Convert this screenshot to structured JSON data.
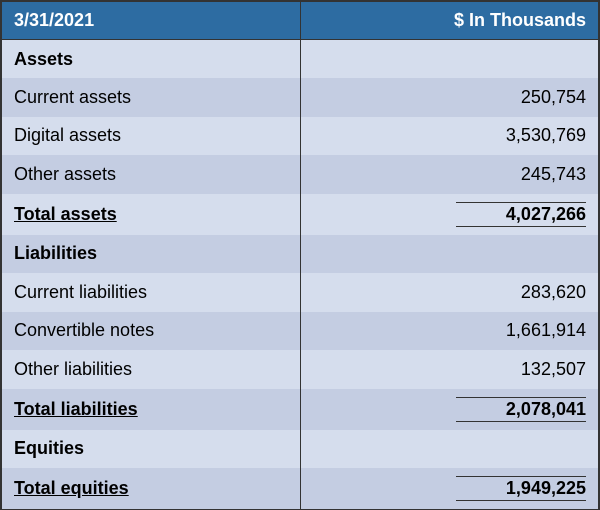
{
  "header": {
    "date": "3/31/2021",
    "unit": "$ In Thousands"
  },
  "colors": {
    "header_bg": "#2d6ca2",
    "header_text": "#ffffff",
    "row_light": "#d5dded",
    "row_dark": "#c4cde2",
    "border": "#333333"
  },
  "sections": [
    {
      "title": "Assets",
      "items": [
        {
          "label": "Current assets",
          "value": "250,754"
        },
        {
          "label": "Digital assets",
          "value": "3,530,769"
        },
        {
          "label": "Other assets",
          "value": "245,743"
        }
      ],
      "total": {
        "label": "Total assets",
        "value": "4,027,266"
      }
    },
    {
      "title": "Liabilities",
      "items": [
        {
          "label": "Current liabilities",
          "value": "283,620"
        },
        {
          "label": "Convertible notes",
          "value": "1,661,914"
        },
        {
          "label": "Other liabilities",
          "value": "132,507"
        }
      ],
      "total": {
        "label": "Total liabilities",
        "value": "2,078,041"
      }
    },
    {
      "title": "Equities",
      "items": [],
      "total": {
        "label": "Total equities",
        "value": "1,949,225"
      }
    }
  ]
}
